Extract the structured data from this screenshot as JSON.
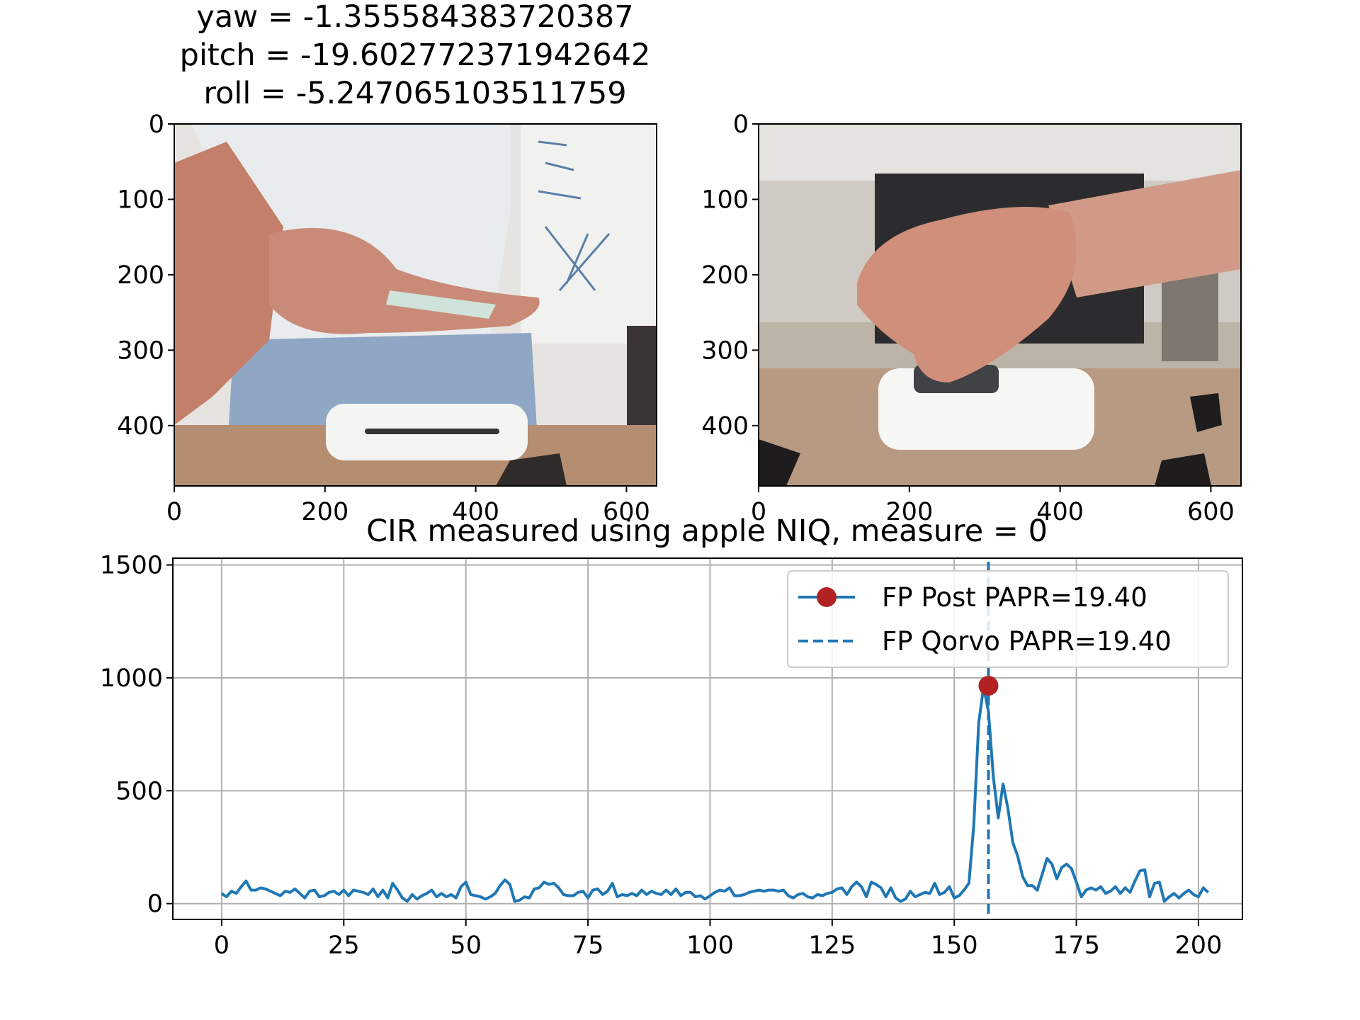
{
  "figure": {
    "title_lines": [
      "yaw = -1.355584383720387",
      "pitch = -19.602772371942642",
      "roll = -5.247065103511759"
    ]
  },
  "images": [
    {
      "name": "camera-frame-left",
      "xticks": [
        "0",
        "200",
        "400",
        "600"
      ],
      "yticks": [
        "0",
        "100",
        "200",
        "300",
        "400"
      ],
      "xlim": [
        0,
        640
      ],
      "ylim": [
        480,
        0
      ],
      "colors": {
        "wall": "#e6e4e1",
        "whiteboard": "#f1f2ef",
        "shirt": "#e9ecef",
        "jeans": "#8fa6c4",
        "skin": "#c47f6a",
        "table": "#b58d70",
        "device": "#f4f4f2",
        "phone": "#cfe3da"
      }
    },
    {
      "name": "camera-frame-right",
      "xticks": [
        "0",
        "200",
        "400",
        "600"
      ],
      "yticks": [
        "0",
        "100",
        "200",
        "300",
        "400"
      ],
      "xlim": [
        0,
        640
      ],
      "ylim": [
        480,
        0
      ],
      "colors": {
        "office": "#bdb4a8",
        "ceiling": "#e5e3df",
        "monitor": "#2c2c2e",
        "table": "#b89a82",
        "skin": "#d19a86",
        "device": "#f7f7f5",
        "phone": "#cfe3da"
      }
    }
  ],
  "chart_data": {
    "type": "line",
    "title": "CIR measured using apple NIQ, measure = 0",
    "xlabel": "",
    "ylabel": "",
    "xlim": [
      -10,
      209
    ],
    "ylim": [
      -70,
      1530
    ],
    "xticks": [
      0,
      25,
      50,
      75,
      100,
      125,
      150,
      175,
      200
    ],
    "yticks": [
      0,
      500,
      1000,
      1500
    ],
    "grid": true,
    "legend_position": "top-right",
    "series": [
      {
        "name": "FP Post PAPR=19.40",
        "color": "#1f77b4",
        "x_start": 0,
        "values": [
          45,
          30,
          55,
          45,
          75,
          100,
          60,
          60,
          70,
          65,
          55,
          45,
          35,
          55,
          50,
          65,
          45,
          25,
          55,
          60,
          30,
          35,
          50,
          55,
          40,
          60,
          35,
          60,
          55,
          50,
          40,
          65,
          30,
          60,
          25,
          90,
          60,
          25,
          10,
          40,
          20,
          35,
          45,
          60,
          30,
          45,
          30,
          40,
          25,
          75,
          95,
          40,
          35,
          30,
          20,
          30,
          45,
          80,
          105,
          85,
          10,
          15,
          30,
          25,
          65,
          70,
          95,
          85,
          90,
          70,
          40,
          35,
          35,
          50,
          55,
          25,
          60,
          65,
          40,
          55,
          90,
          30,
          40,
          35,
          45,
          35,
          60,
          40,
          55,
          45,
          40,
          60,
          40,
          65,
          35,
          50,
          50,
          30,
          35,
          20,
          35,
          50,
          60,
          55,
          70,
          35,
          35,
          40,
          50,
          55,
          60,
          55,
          60,
          60,
          55,
          60,
          35,
          25,
          40,
          45,
          30,
          25,
          40,
          35,
          45,
          50,
          65,
          70,
          40,
          75,
          95,
          75,
          30,
          95,
          85,
          70,
          30,
          70,
          25,
          10,
          20,
          55,
          30,
          40,
          50,
          45,
          90,
          40,
          50,
          75,
          25,
          35,
          60,
          90,
          350,
          800,
          960,
          850,
          560,
          380,
          530,
          420,
          270,
          210,
          120,
          80,
          80,
          60,
          130,
          200,
          175,
          110,
          160,
          175,
          155,
          95,
          30,
          60,
          70,
          60,
          75,
          45,
          55,
          75,
          45,
          70,
          50,
          100,
          145,
          150,
          30,
          90,
          95,
          10,
          30,
          45,
          25,
          45,
          60,
          40,
          30,
          70,
          50
        ],
        "first_path": {
          "x": 157,
          "y": 965
        }
      },
      {
        "name": "FP Qorvo PAPR=19.40",
        "color": "#1f77b4",
        "style": "dashed",
        "x": 157
      }
    ]
  }
}
